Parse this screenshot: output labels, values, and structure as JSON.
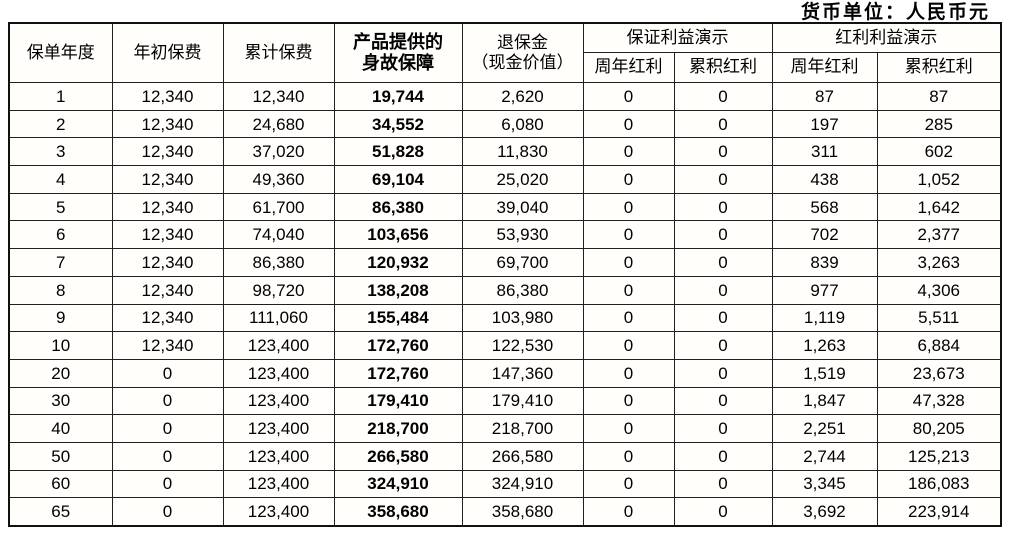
{
  "currency_note": "货币单位：人民币元",
  "table": {
    "columns": [
      "保单年度",
      "年初保费",
      "累计保费",
      "产品提供的\n身故保障",
      "退保金\n（现金价值）"
    ],
    "groups": [
      {
        "label": "保证利益演示",
        "children": [
          "周年红利",
          "累积红利"
        ]
      },
      {
        "label": "红利利益演示",
        "children": [
          "周年红利",
          "累积红利"
        ]
      }
    ],
    "bold_column_index": 3,
    "rows": [
      [
        "1",
        "12,340",
        "12,340",
        "19,744",
        "2,620",
        "0",
        "0",
        "87",
        "87"
      ],
      [
        "2",
        "12,340",
        "24,680",
        "34,552",
        "6,080",
        "0",
        "0",
        "197",
        "285"
      ],
      [
        "3",
        "12,340",
        "37,020",
        "51,828",
        "11,830",
        "0",
        "0",
        "311",
        "602"
      ],
      [
        "4",
        "12,340",
        "49,360",
        "69,104",
        "25,020",
        "0",
        "0",
        "438",
        "1,052"
      ],
      [
        "5",
        "12,340",
        "61,700",
        "86,380",
        "39,040",
        "0",
        "0",
        "568",
        "1,642"
      ],
      [
        "6",
        "12,340",
        "74,040",
        "103,656",
        "53,930",
        "0",
        "0",
        "702",
        "2,377"
      ],
      [
        "7",
        "12,340",
        "86,380",
        "120,932",
        "69,700",
        "0",
        "0",
        "839",
        "3,263"
      ],
      [
        "8",
        "12,340",
        "98,720",
        "138,208",
        "86,380",
        "0",
        "0",
        "977",
        "4,306"
      ],
      [
        "9",
        "12,340",
        "111,060",
        "155,484",
        "103,980",
        "0",
        "0",
        "1,119",
        "5,511"
      ],
      [
        "10",
        "12,340",
        "123,400",
        "172,760",
        "122,530",
        "0",
        "0",
        "1,263",
        "6,884"
      ],
      [
        "20",
        "0",
        "123,400",
        "172,760",
        "147,360",
        "0",
        "0",
        "1,519",
        "23,673"
      ],
      [
        "30",
        "0",
        "123,400",
        "179,410",
        "179,410",
        "0",
        "0",
        "1,847",
        "47,328"
      ],
      [
        "40",
        "0",
        "123,400",
        "218,700",
        "218,700",
        "0",
        "0",
        "2,251",
        "80,205"
      ],
      [
        "50",
        "0",
        "123,400",
        "266,580",
        "266,580",
        "0",
        "0",
        "2,744",
        "125,213"
      ],
      [
        "60",
        "0",
        "123,400",
        "324,910",
        "324,910",
        "0",
        "0",
        "3,345",
        "186,083"
      ],
      [
        "65",
        "0",
        "123,400",
        "358,680",
        "358,680",
        "0",
        "0",
        "3,692",
        "223,914"
      ]
    ]
  },
  "colors": {
    "border": "#1f1f1f",
    "text": "#000000",
    "background": "#ffffff"
  }
}
